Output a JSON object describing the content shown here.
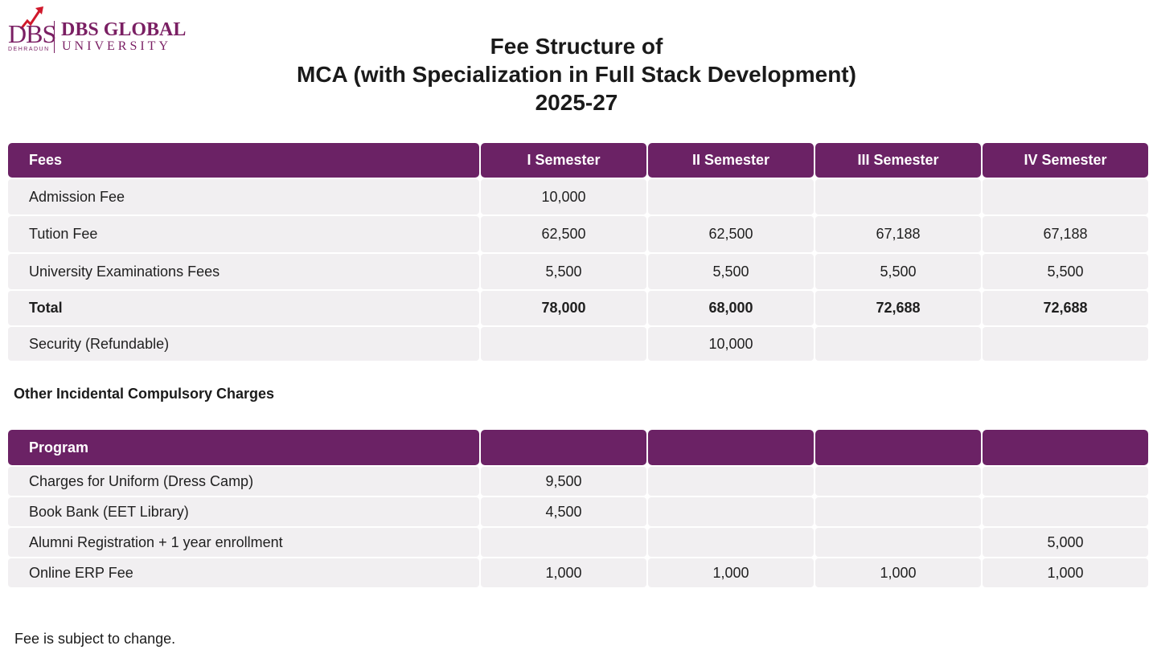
{
  "logo": {
    "abbr": "DBS",
    "city": "DEHRADUN",
    "name_line1": "DBS GLOBAL",
    "name_line2": "UNIVERSITY",
    "color": "#7a1f63"
  },
  "title": {
    "line1": "Fee Structure of",
    "line2": "MCA (with Specialization in Full Stack Development)",
    "line3": "2025-27"
  },
  "fees_table": {
    "headers": [
      "Fees",
      "I Semester",
      "II Semester",
      "III Semester",
      "IV Semester"
    ],
    "rows": [
      {
        "label": "Admission Fee",
        "values": [
          "10,000",
          "",
          "",
          ""
        ]
      },
      {
        "label": "Tution Fee",
        "values": [
          "62,500",
          "62,500",
          "67,188",
          "67,188"
        ]
      },
      {
        "label": "University Examinations Fees",
        "values": [
          "5,500",
          "5,500",
          "5,500",
          "5,500"
        ]
      },
      {
        "label": "Total",
        "values": [
          "78,000",
          "68,000",
          "72,688",
          "72,688"
        ]
      },
      {
        "label": "Security (Refundable)",
        "values": [
          "",
          "10,000",
          "",
          ""
        ]
      }
    ]
  },
  "other_charges": {
    "heading": "Other Incidental Compulsory Charges",
    "headers": [
      "Program",
      "",
      "",
      "",
      ""
    ],
    "rows": [
      {
        "label": "Charges for Uniform (Dress Camp)",
        "values": [
          "9,500",
          "",
          "",
          ""
        ]
      },
      {
        "label": "Book Bank (EET Library)",
        "values": [
          "4,500",
          "",
          "",
          ""
        ]
      },
      {
        "label": "Alumni Registration + 1 year enrollment",
        "values": [
          "",
          "",
          "",
          "5,000"
        ]
      },
      {
        "label": "Online ERP Fee",
        "values": [
          "1,000",
          "1,000",
          "1,000",
          "1,000"
        ]
      }
    ]
  },
  "footnote": "Fee is subject to change.",
  "colors": {
    "header_bg": "#6b2265",
    "cell_bg": "#f1eff1"
  }
}
